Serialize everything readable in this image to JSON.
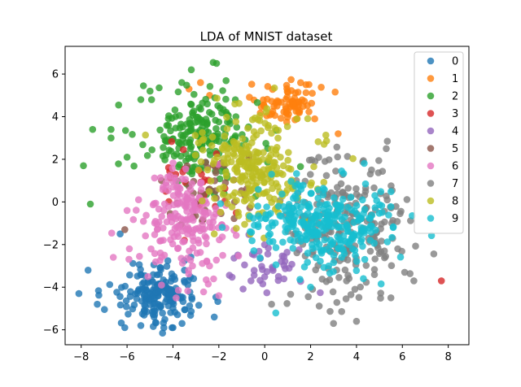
{
  "chart_data": {
    "type": "scatter",
    "title": "LDA of MNIST dataset",
    "xlabel": "",
    "ylabel": "",
    "xlim": [
      -8.7,
      8.9
    ],
    "ylim": [
      -6.7,
      7.3
    ],
    "xticks": [
      -8,
      -6,
      -4,
      -2,
      0,
      2,
      4,
      6,
      8
    ],
    "yticks": [
      -6,
      -4,
      -2,
      0,
      2,
      4,
      6
    ],
    "grid": false,
    "legend_position": "top-right",
    "series": [
      {
        "name": "0",
        "color": "#1f77b4",
        "center": [
          -4.6,
          -4.3
        ],
        "spread": [
          0.9,
          0.7
        ],
        "count": 180,
        "outliers": [
          [
            -7.7,
            -3.2
          ],
          [
            -8.1,
            -4.3
          ],
          [
            -6.3,
            -1.5
          ],
          [
            -6.1,
            -5.9
          ],
          [
            -4.0,
            -5.9
          ],
          [
            -2.2,
            -5.4
          ],
          [
            -7.3,
            -4.8
          ],
          [
            -5.4,
            -5.8
          ]
        ]
      },
      {
        "name": "1",
        "color": "#ff7f0e",
        "center": [
          0.9,
          4.6
        ],
        "spread": [
          0.7,
          0.45
        ],
        "count": 80,
        "outliers": [
          [
            -3.3,
            5.3
          ],
          [
            1.8,
            5.5
          ],
          [
            3.2,
            3.2
          ],
          [
            -2.4,
            5.0
          ],
          [
            -2.8,
            5.6
          ]
        ]
      },
      {
        "name": "2",
        "color": "#2ca02c",
        "center": [
          -3.0,
          3.0
        ],
        "spread": [
          1.3,
          1.1
        ],
        "count": 200,
        "outliers": [
          [
            -7.9,
            1.7
          ],
          [
            -7.5,
            3.4
          ],
          [
            -6.7,
            3.4
          ],
          [
            -7.6,
            -0.1
          ],
          [
            -2.1,
            6.5
          ],
          [
            -3.2,
            6.2
          ],
          [
            -5.0,
            5.2
          ],
          [
            -5.4,
            4.8
          ],
          [
            -6.7,
            3.0
          ],
          [
            -6.0,
            2.1
          ]
        ]
      },
      {
        "name": "3",
        "color": "#d62728",
        "center": [
          -3.0,
          1.0
        ],
        "spread": [
          0.7,
          0.9
        ],
        "count": 25,
        "outliers": [
          [
            7.7,
            -3.7
          ],
          [
            -3.5,
            -1.8
          ]
        ]
      },
      {
        "name": "4",
        "color": "#9467bd",
        "center": [
          0.2,
          -3.0
        ],
        "spread": [
          0.8,
          0.6
        ],
        "count": 40,
        "outliers": [
          [
            -0.6,
            -3.7
          ],
          [
            0.6,
            -3.5
          ]
        ]
      },
      {
        "name": "5",
        "color": "#8c564b",
        "center": [
          -2.3,
          0.5
        ],
        "spread": [
          0.8,
          0.9
        ],
        "count": 40,
        "outliers": [
          [
            -6.1,
            -1.3
          ],
          [
            -4.5,
            1.0
          ]
        ]
      },
      {
        "name": "6",
        "color": "#e377c2",
        "center": [
          -3.4,
          -1.0
        ],
        "spread": [
          1.0,
          1.2
        ],
        "count": 200,
        "outliers": [
          [
            -5.9,
            -2.2
          ],
          [
            -6.6,
            -2.6
          ],
          [
            -4.5,
            -3.9
          ],
          [
            -2.0,
            -4.4
          ],
          [
            -5.5,
            0.1
          ],
          [
            -6.0,
            -0.4
          ]
        ]
      },
      {
        "name": "7",
        "color": "#7f7f7f",
        "center": [
          3.5,
          -1.2
        ],
        "spread": [
          1.3,
          1.7
        ],
        "count": 220,
        "outliers": [
          [
            5.3,
            2.5
          ],
          [
            6.1,
            -3.3
          ],
          [
            5.5,
            -4.5
          ],
          [
            3.0,
            -5.7
          ],
          [
            4.0,
            -5.6
          ],
          [
            0.3,
            -4.8
          ],
          [
            6.5,
            -3.7
          ],
          [
            5.8,
            -2.2
          ]
        ]
      },
      {
        "name": "8",
        "color": "#bcbd22",
        "center": [
          -0.6,
          1.6
        ],
        "spread": [
          1.2,
          1.3
        ],
        "count": 240,
        "outliers": [
          [
            -1.3,
            4.6
          ],
          [
            1.4,
            3.9
          ],
          [
            -2.2,
            -1.5
          ]
        ]
      },
      {
        "name": "9",
        "color": "#17becf",
        "center": [
          2.4,
          -1.0
        ],
        "spread": [
          1.5,
          1.0
        ],
        "count": 300,
        "outliers": [
          [
            4.3,
            -3.6
          ],
          [
            2.0,
            -4.0
          ],
          [
            5.6,
            -1.2
          ],
          [
            4.8,
            0.3
          ],
          [
            -0.3,
            -0.2
          ],
          [
            0.3,
            1.3
          ]
        ]
      }
    ]
  }
}
